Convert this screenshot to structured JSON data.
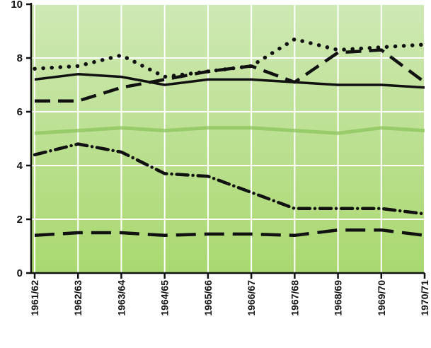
{
  "chart_data": {
    "type": "line",
    "title": "",
    "xlabel": "",
    "ylabel": "",
    "categories": [
      "1961/62",
      "1962/63",
      "1963/64",
      "1964/65",
      "1965/66",
      "1966/67",
      "1967/68",
      "1968/69",
      "1969/70",
      "1970/71"
    ],
    "ylim": [
      0,
      10
    ],
    "yticks": [
      "0",
      "2",
      "4",
      "6",
      "8",
      "10"
    ],
    "grid": true,
    "legend": "none",
    "colors": {
      "plot_bg_top": "#cfe9b4",
      "plot_bg_bottom": "#a9d86f",
      "grid": "#ffffff",
      "line": "#111111",
      "faint_line": "#8cc35c",
      "axis": "#111111"
    },
    "series": [
      {
        "style": "dotted",
        "values": [
          7.6,
          7.7,
          8.1,
          7.3,
          7.5,
          7.7,
          8.7,
          8.3,
          8.4,
          8.5
        ]
      },
      {
        "style": "dashed",
        "values": [
          6.4,
          6.4,
          6.9,
          7.2,
          7.5,
          7.7,
          7.1,
          8.2,
          8.3,
          7.1
        ]
      },
      {
        "style": "solid",
        "values": [
          7.2,
          7.4,
          7.3,
          7.0,
          7.2,
          7.2,
          7.1,
          7.0,
          7.0,
          6.9
        ]
      },
      {
        "style": "faint",
        "values": [
          5.2,
          5.3,
          5.4,
          5.3,
          5.4,
          5.4,
          5.3,
          5.2,
          5.4,
          5.3
        ]
      },
      {
        "style": "dash-dot",
        "values": [
          4.4,
          4.8,
          4.5,
          3.7,
          3.6,
          3.0,
          2.4,
          2.4,
          2.4,
          2.2
        ]
      },
      {
        "style": "long-dash",
        "values": [
          1.4,
          1.5,
          1.5,
          1.4,
          1.45,
          1.45,
          1.4,
          1.6,
          1.6,
          1.4
        ]
      }
    ]
  }
}
